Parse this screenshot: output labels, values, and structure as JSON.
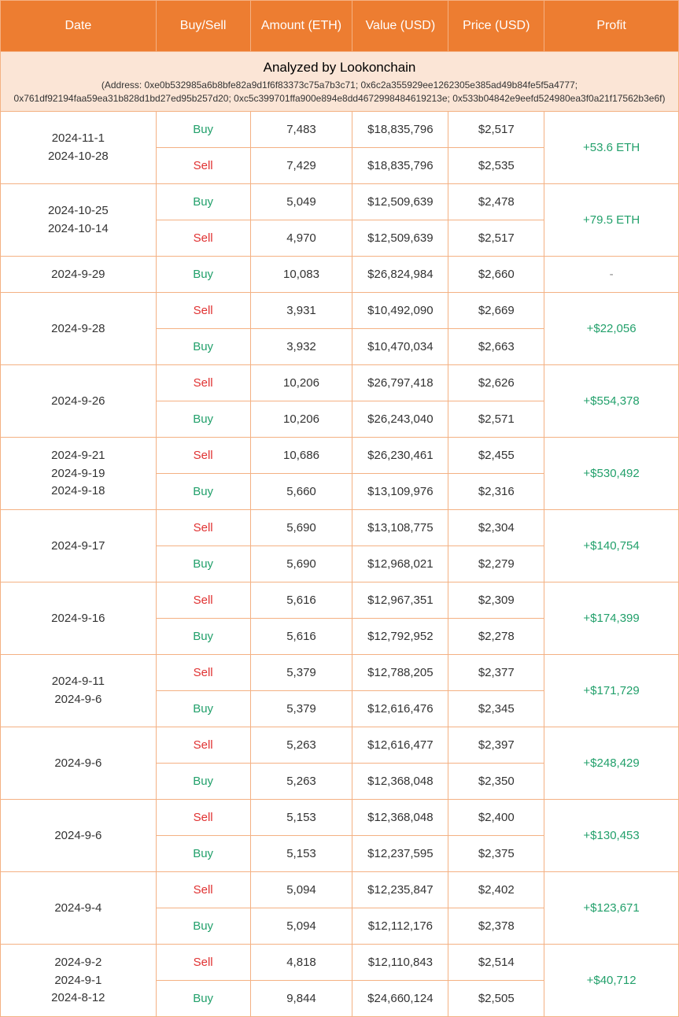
{
  "columns": [
    "Date",
    "Buy/Sell",
    "Amount (ETH)",
    "Value (USD)",
    "Price (USD)",
    "Profit"
  ],
  "analyzed": {
    "title": "Analyzed by Lookonchain",
    "addresses": "(Address: 0xe0b532985a6b8bfe82a9d1f6f83373c75a7b3c71; 0x6c2a355929ee1262305e385ad49b84fe5f5a4777; 0x761df92194faa59ea31b828d1bd27ed95b257d20; 0xc5c399701ffa900e894e8dd4672998484619213e; 0x533b04842e9eefd524980ea3f0a21f17562b3e6f)"
  },
  "colors": {
    "header_bg": "#ed7d31",
    "header_text": "#ffffff",
    "analyzed_bg": "#fbe5d6",
    "border": "#f4b183",
    "buy": "#22a06b",
    "sell": "#e03131",
    "profit": "#22a06b"
  },
  "groups": [
    {
      "dates": [
        "2024-11-1",
        "2024-10-28"
      ],
      "rows": [
        {
          "action": "Buy",
          "amount": "7,483",
          "value": "$18,835,796",
          "price": "$2,517"
        },
        {
          "action": "Sell",
          "amount": "7,429",
          "value": "$18,835,796",
          "price": "$2,535"
        }
      ],
      "profit": "+53.6 ETH"
    },
    {
      "dates": [
        "2024-10-25",
        "2024-10-14"
      ],
      "rows": [
        {
          "action": "Buy",
          "amount": "5,049",
          "value": "$12,509,639",
          "price": "$2,478"
        },
        {
          "action": "Sell",
          "amount": "4,970",
          "value": "$12,509,639",
          "price": "$2,517"
        }
      ],
      "profit": "+79.5 ETH"
    },
    {
      "dates": [
        "2024-9-29"
      ],
      "rows": [
        {
          "action": "Buy",
          "amount": "10,083",
          "value": "$26,824,984",
          "price": "$2,660"
        }
      ],
      "profit": "-"
    },
    {
      "dates": [
        "2024-9-28"
      ],
      "rows": [
        {
          "action": "Sell",
          "amount": "3,931",
          "value": "$10,492,090",
          "price": "$2,669"
        },
        {
          "action": "Buy",
          "amount": "3,932",
          "value": "$10,470,034",
          "price": "$2,663"
        }
      ],
      "profit": "+$22,056"
    },
    {
      "dates": [
        "2024-9-26"
      ],
      "rows": [
        {
          "action": "Sell",
          "amount": "10,206",
          "value": "$26,797,418",
          "price": "$2,626"
        },
        {
          "action": "Buy",
          "amount": "10,206",
          "value": "$26,243,040",
          "price": "$2,571"
        }
      ],
      "profit": "+$554,378"
    },
    {
      "dates": [
        "2024-9-21",
        "2024-9-19",
        "2024-9-18"
      ],
      "rows": [
        {
          "action": "Sell",
          "amount": "10,686",
          "value": "$26,230,461",
          "price": "$2,455"
        },
        {
          "action": "Buy",
          "amount": "5,660",
          "value": "$13,109,976",
          "price": "$2,316"
        }
      ],
      "profit": "+$530,492"
    },
    {
      "dates": [
        "2024-9-17"
      ],
      "rows": [
        {
          "action": "Sell",
          "amount": "5,690",
          "value": "$13,108,775",
          "price": "$2,304"
        },
        {
          "action": "Buy",
          "amount": "5,690",
          "value": "$12,968,021",
          "price": "$2,279"
        }
      ],
      "profit": "+$140,754"
    },
    {
      "dates": [
        "2024-9-16"
      ],
      "rows": [
        {
          "action": "Sell",
          "amount": "5,616",
          "value": "$12,967,351",
          "price": "$2,309"
        },
        {
          "action": "Buy",
          "amount": "5,616",
          "value": "$12,792,952",
          "price": "$2,278"
        }
      ],
      "profit": "+$174,399"
    },
    {
      "dates": [
        "2024-9-11",
        "2024-9-6"
      ],
      "rows": [
        {
          "action": "Sell",
          "amount": "5,379",
          "value": "$12,788,205",
          "price": "$2,377"
        },
        {
          "action": "Buy",
          "amount": "5,379",
          "value": "$12,616,476",
          "price": "$2,345"
        }
      ],
      "profit": "+$171,729"
    },
    {
      "dates": [
        "2024-9-6"
      ],
      "rows": [
        {
          "action": "Sell",
          "amount": "5,263",
          "value": "$12,616,477",
          "price": "$2,397"
        },
        {
          "action": "Buy",
          "amount": "5,263",
          "value": "$12,368,048",
          "price": "$2,350"
        }
      ],
      "profit": "+$248,429"
    },
    {
      "dates": [
        "2024-9-6"
      ],
      "rows": [
        {
          "action": "Sell",
          "amount": "5,153",
          "value": "$12,368,048",
          "price": "$2,400"
        },
        {
          "action": "Buy",
          "amount": "5,153",
          "value": "$12,237,595",
          "price": "$2,375"
        }
      ],
      "profit": "+$130,453"
    },
    {
      "dates": [
        "2024-9-4"
      ],
      "rows": [
        {
          "action": "Sell",
          "amount": "5,094",
          "value": "$12,235,847",
          "price": "$2,402"
        },
        {
          "action": "Buy",
          "amount": "5,094",
          "value": "$12,112,176",
          "price": "$2,378"
        }
      ],
      "profit": "+$123,671"
    },
    {
      "dates": [
        "2024-9-2",
        "2024-9-1",
        "2024-8-12"
      ],
      "rows": [
        {
          "action": "Sell",
          "amount": "4,818",
          "value": "$12,110,843",
          "price": "$2,514"
        },
        {
          "action": "Buy",
          "amount": "9,844",
          "value": "$24,660,124",
          "price": "$2,505"
        }
      ],
      "profit": "+$40,712"
    }
  ]
}
